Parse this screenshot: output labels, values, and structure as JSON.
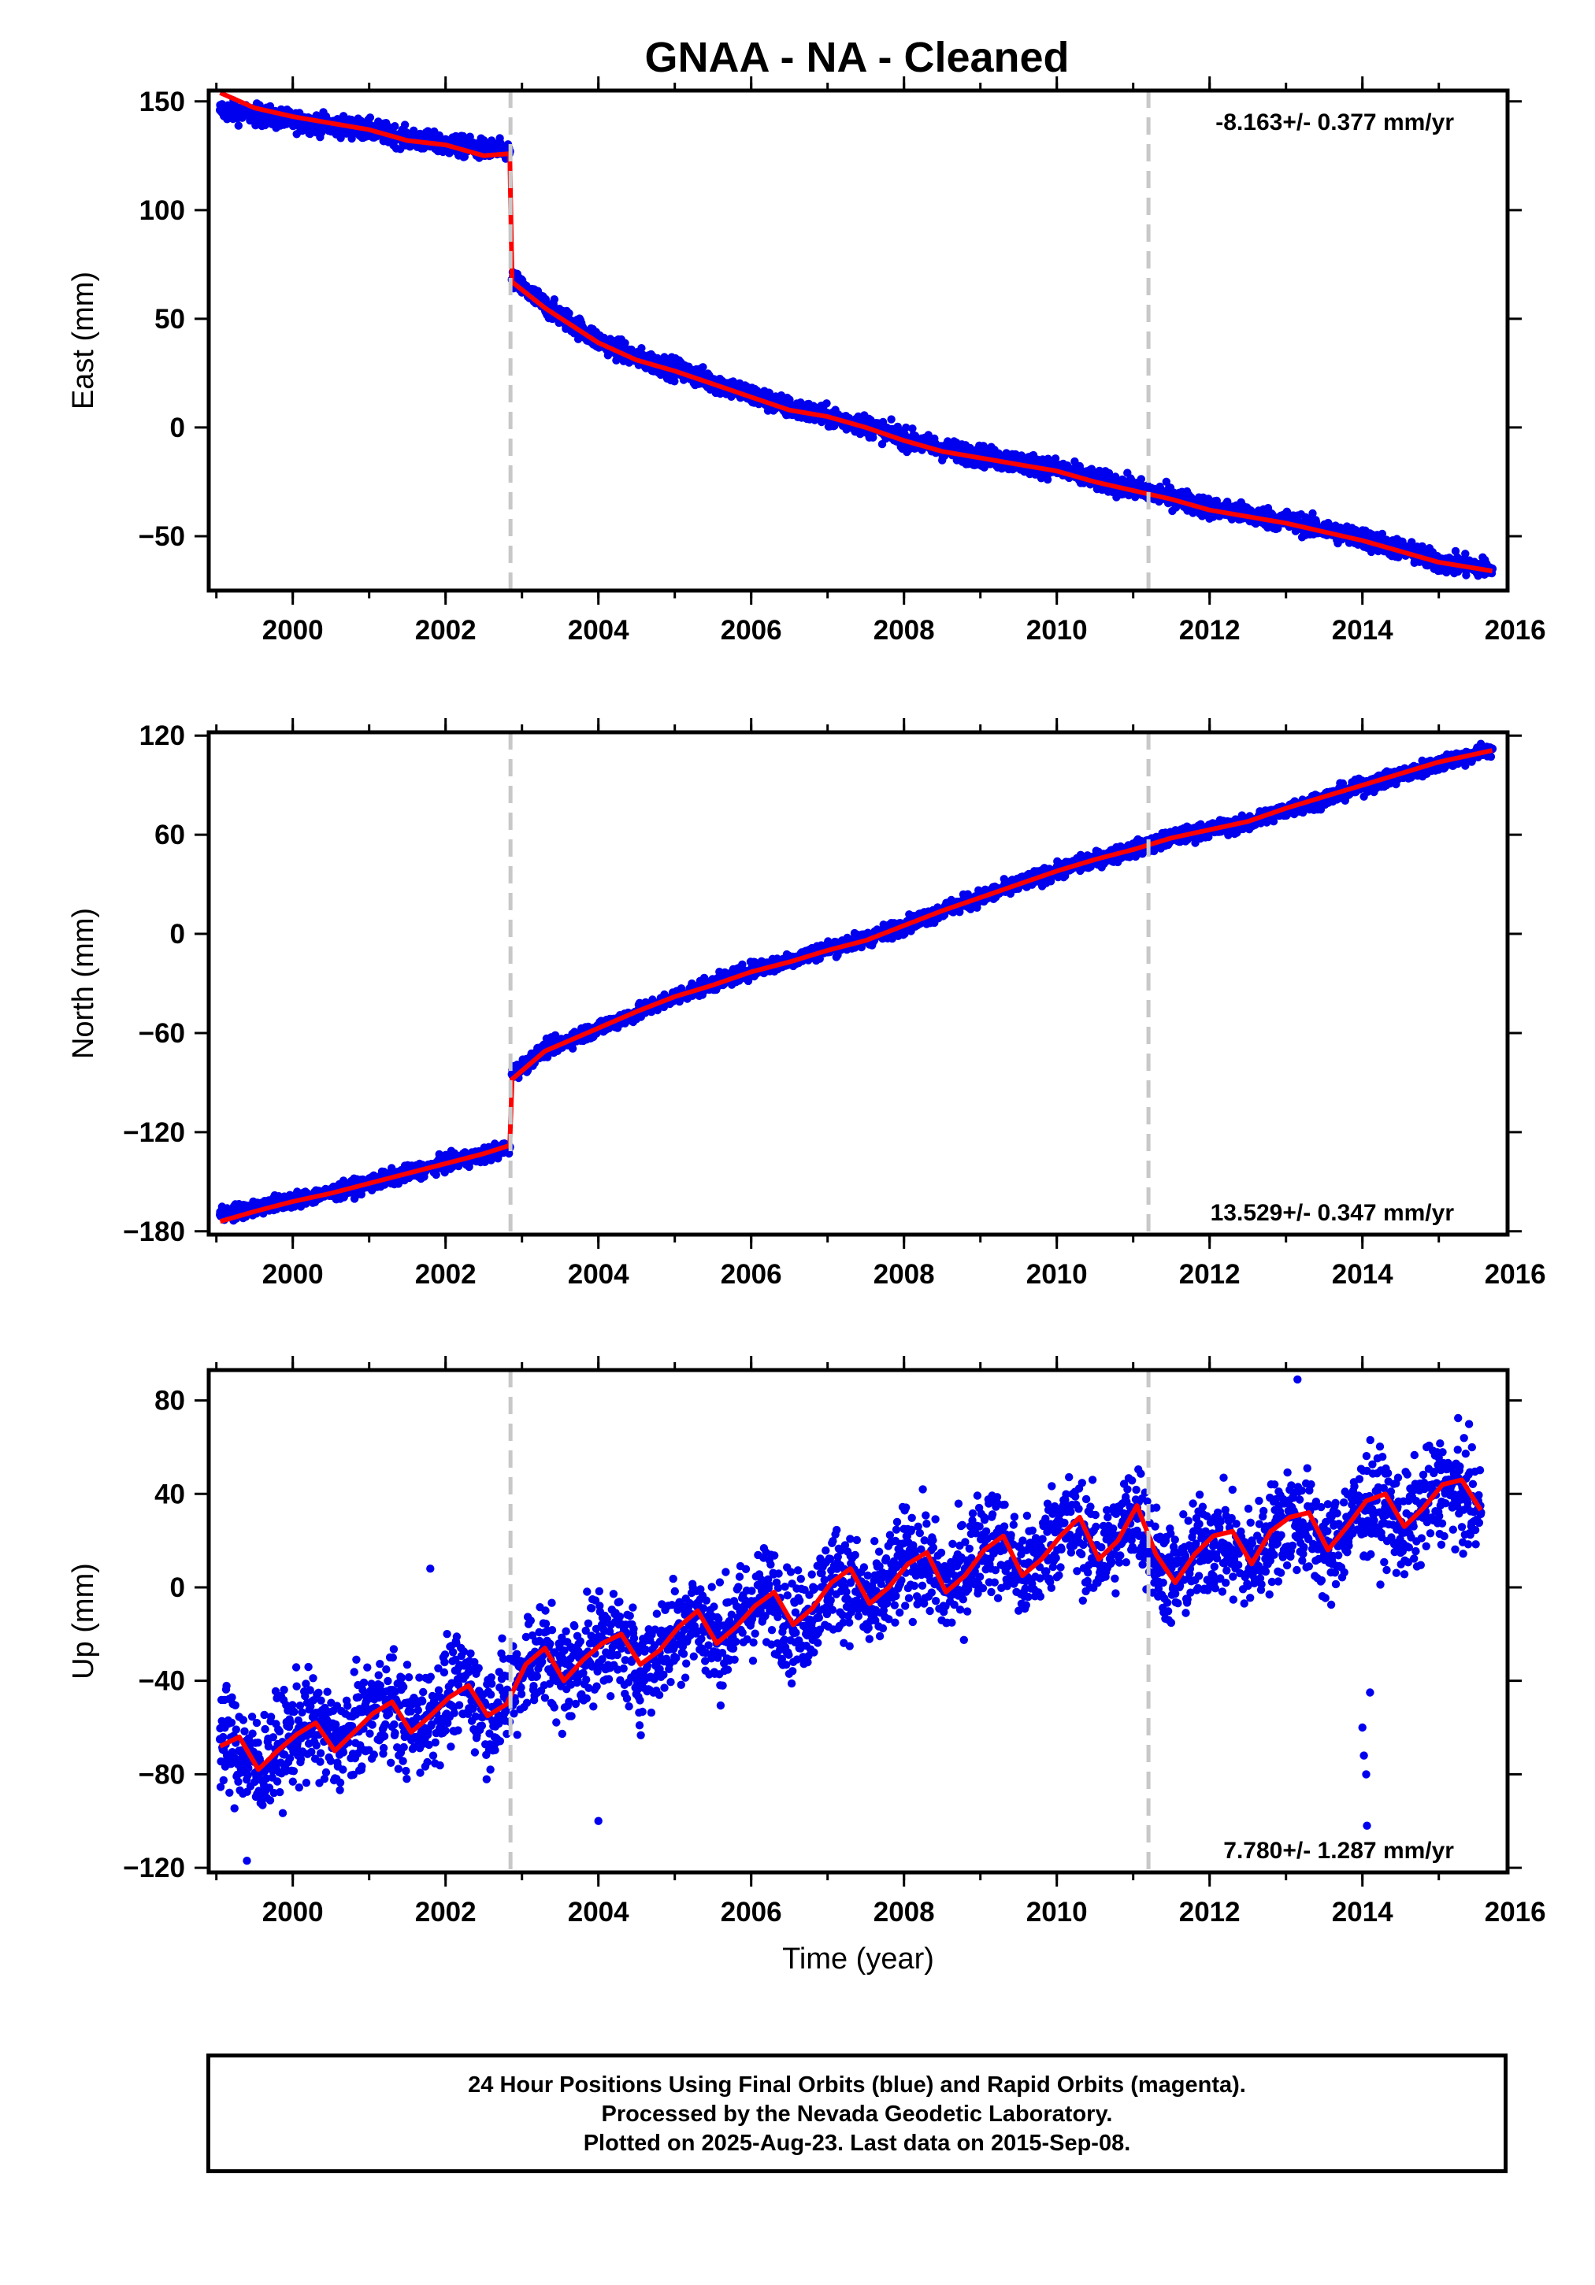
{
  "title": "GNAA  - NA - Cleaned",
  "chart_data": [
    {
      "type": "scatter",
      "panel": "east",
      "ylabel": "East (mm)",
      "xlabel": "",
      "xlim": [
        1998.9,
        2015.9
      ],
      "ylim": [
        -75,
        155
      ],
      "x_ticks": [
        2000,
        2002,
        2004,
        2006,
        2008,
        2010,
        2012,
        2014,
        2016
      ],
      "y_ticks": [
        -50,
        0,
        50,
        100,
        150
      ],
      "y_tick_labels": [
        "−50",
        "0",
        "50",
        "100",
        "150"
      ],
      "rate_text": "-8.163+/- 0.377 mm/yr",
      "rate_position": "top-right",
      "offset_lines": [
        2002.85,
        2011.2
      ],
      "series": [
        {
          "role": "daily-positions",
          "color": "#0000ee",
          "x": [
            1999.05,
            1999.5,
            2000.0,
            2000.5,
            2001.0,
            2001.5,
            2002.0,
            2002.5,
            2002.84,
            2002.87,
            2003.3,
            2004.0,
            2004.5,
            2005.0,
            2005.5,
            2006.0,
            2006.5,
            2007.0,
            2007.5,
            2008.0,
            2008.5,
            2009.0,
            2009.5,
            2010.0,
            2010.5,
            2011.0,
            2011.5,
            2012.0,
            2012.5,
            2013.0,
            2013.5,
            2014.0,
            2014.5,
            2015.0,
            2015.7
          ],
          "y": [
            146,
            144,
            141,
            139,
            137,
            133,
            130,
            128,
            127,
            68,
            56,
            40,
            32,
            27,
            21,
            15,
            9,
            5,
            1,
            -5,
            -10,
            -13,
            -16,
            -19,
            -24,
            -28,
            -32,
            -37,
            -40,
            -43,
            -47,
            -51,
            -56,
            -62,
            -65
          ]
        },
        {
          "role": "model-fit",
          "color": "#ff0000",
          "x": [
            1999.05,
            1999.5,
            2000.0,
            2000.5,
            2001.0,
            2001.5,
            2002.0,
            2002.5,
            2002.84,
            2002.87,
            2003.3,
            2004.0,
            2004.5,
            2005.0,
            2005.5,
            2006.0,
            2006.5,
            2007.0,
            2007.5,
            2008.0,
            2008.5,
            2009.0,
            2009.5,
            2010.0,
            2010.5,
            2011.0,
            2011.5,
            2012.0,
            2012.5,
            2013.0,
            2013.5,
            2014.0,
            2014.5,
            2015.0,
            2015.7
          ],
          "y": [
            154,
            147,
            143,
            140,
            137,
            132,
            130,
            125,
            126,
            67,
            55,
            39,
            31,
            26,
            20,
            14,
            8,
            5,
            0,
            -6,
            -11,
            -14,
            -17,
            -20,
            -25,
            -29,
            -33,
            -38,
            -41,
            -44,
            -48,
            -52,
            -57,
            -62,
            -66
          ]
        }
      ]
    },
    {
      "type": "scatter",
      "panel": "north",
      "ylabel": "North (mm)",
      "xlabel": "",
      "xlim": [
        1998.9,
        2015.9
      ],
      "ylim": [
        -182,
        122
      ],
      "x_ticks": [
        2000,
        2002,
        2004,
        2006,
        2008,
        2010,
        2012,
        2014,
        2016
      ],
      "y_ticks": [
        -180,
        -120,
        -60,
        0,
        60,
        120
      ],
      "y_tick_labels": [
        "−180",
        "−120",
        "−60",
        "0",
        "60",
        "120"
      ],
      "rate_text": "13.529+/- 0.347 mm/yr",
      "rate_position": "bottom-right",
      "offset_lines": [
        2002.85,
        2011.2
      ],
      "series": [
        {
          "role": "daily-positions",
          "color": "#0000ee",
          "x": [
            1999.05,
            1999.5,
            2000.0,
            2000.5,
            2001.0,
            2001.5,
            2002.0,
            2002.5,
            2002.84,
            2002.87,
            2003.3,
            2004.0,
            2004.5,
            2005.0,
            2005.5,
            2006.0,
            2006.5,
            2007.0,
            2007.5,
            2008.0,
            2008.5,
            2009.0,
            2009.5,
            2010.0,
            2010.5,
            2011.0,
            2011.5,
            2012.0,
            2012.5,
            2013.0,
            2013.5,
            2014.0,
            2014.5,
            2015.0,
            2015.7
          ],
          "y": [
            -170,
            -166,
            -161,
            -157,
            -151,
            -145,
            -139,
            -134,
            -129,
            -85,
            -70,
            -57,
            -48,
            -38,
            -30,
            -22,
            -16,
            -9,
            -3,
            5,
            14,
            22,
            30,
            38,
            45,
            51,
            58,
            63,
            67,
            75,
            82,
            89,
            96,
            103,
            112
          ]
        },
        {
          "role": "model-fit",
          "color": "#ff0000",
          "x": [
            1999.05,
            1999.5,
            2000.0,
            2000.5,
            2001.0,
            2001.5,
            2002.0,
            2002.5,
            2002.84,
            2002.87,
            2003.3,
            2004.0,
            2004.5,
            2005.0,
            2005.5,
            2006.0,
            2006.5,
            2007.0,
            2007.5,
            2008.0,
            2008.5,
            2009.0,
            2009.5,
            2010.0,
            2010.5,
            2011.0,
            2011.5,
            2012.0,
            2012.5,
            2013.0,
            2013.5,
            2014.0,
            2014.5,
            2015.0,
            2015.7
          ],
          "y": [
            -174,
            -168,
            -162,
            -157,
            -151,
            -145,
            -139,
            -133,
            -128,
            -88,
            -71,
            -57,
            -47,
            -38,
            -31,
            -23,
            -17,
            -10,
            -4,
            5,
            14,
            22,
            30,
            38,
            45,
            51,
            58,
            63,
            68,
            76,
            83,
            90,
            97,
            104,
            111
          ]
        }
      ]
    },
    {
      "type": "scatter",
      "panel": "up",
      "ylabel": "Up (mm)",
      "xlabel": "Time (year)",
      "xlim": [
        1998.9,
        2015.9
      ],
      "ylim": [
        -122,
        93
      ],
      "x_ticks": [
        2000,
        2002,
        2004,
        2006,
        2008,
        2010,
        2012,
        2014,
        2016
      ],
      "y_ticks": [
        -120,
        -80,
        -40,
        0,
        40,
        80
      ],
      "y_tick_labels": [
        "−120",
        "−80",
        "−40",
        "0",
        "40",
        "80"
      ],
      "rate_text": "7.780+/- 1.287 mm/yr",
      "rate_position": "bottom-right",
      "offset_lines": [
        2002.85,
        2011.2
      ],
      "series": [
        {
          "role": "daily-positions",
          "color": "#0000ee",
          "x": [
            1999.05,
            1999.3,
            1999.55,
            1999.8,
            2000.05,
            2000.3,
            2000.55,
            2000.8,
            2001.05,
            2001.3,
            2001.55,
            2001.8,
            2002.05,
            2002.3,
            2002.55,
            2002.8,
            2003.05,
            2003.3,
            2003.55,
            2003.8,
            2004.05,
            2004.3,
            2004.55,
            2004.8,
            2005.05,
            2005.3,
            2005.55,
            2005.8,
            2006.05,
            2006.3,
            2006.55,
            2006.8,
            2007.05,
            2007.3,
            2007.55,
            2007.8,
            2008.05,
            2008.3,
            2008.55,
            2008.8,
            2009.05,
            2009.3,
            2009.55,
            2009.8,
            2010.05,
            2010.3,
            2010.55,
            2010.8,
            2011.05,
            2011.3,
            2011.55,
            2011.8,
            2012.05,
            2012.3,
            2012.55,
            2012.8,
            2013.05,
            2013.3,
            2013.55,
            2013.8,
            2014.05,
            2014.3,
            2014.55,
            2014.8,
            2015.05,
            2015.3,
            2015.55
          ],
          "y": [
            -65,
            -70,
            -78,
            -70,
            -62,
            -58,
            -68,
            -62,
            -52,
            -50,
            -60,
            -55,
            -45,
            -42,
            -55,
            -48,
            -32,
            -28,
            -38,
            -30,
            -22,
            -24,
            -36,
            -28,
            -16,
            -12,
            -24,
            -16,
            -6,
            -4,
            -18,
            -10,
            4,
            2,
            -10,
            0,
            14,
            10,
            -2,
            8,
            22,
            18,
            4,
            14,
            28,
            24,
            12,
            22,
            34,
            12,
            2,
            14,
            20,
            16,
            10,
            22,
            30,
            26,
            14,
            26,
            36,
            34,
            24,
            34,
            44,
            40,
            32
          ]
        },
        {
          "role": "model-fit",
          "color": "#ff0000",
          "x": [
            1999.05,
            1999.3,
            1999.55,
            1999.8,
            2000.05,
            2000.3,
            2000.55,
            2000.8,
            2001.05,
            2001.3,
            2001.55,
            2001.8,
            2002.05,
            2002.3,
            2002.55,
            2002.8,
            2003.05,
            2003.3,
            2003.55,
            2003.8,
            2004.05,
            2004.3,
            2004.55,
            2004.8,
            2005.05,
            2005.3,
            2005.55,
            2005.8,
            2006.05,
            2006.3,
            2006.55,
            2006.8,
            2007.05,
            2007.3,
            2007.55,
            2007.8,
            2008.05,
            2008.3,
            2008.55,
            2008.8,
            2009.05,
            2009.3,
            2009.55,
            2009.8,
            2010.05,
            2010.3,
            2010.55,
            2010.8,
            2011.05,
            2011.3,
            2011.55,
            2011.8,
            2012.05,
            2012.3,
            2012.55,
            2012.8,
            2013.05,
            2013.3,
            2013.55,
            2013.8,
            2014.05,
            2014.3,
            2014.55,
            2014.8,
            2015.05,
            2015.3,
            2015.55
          ],
          "y": [
            -68,
            -64,
            -78,
            -70,
            -63,
            -58,
            -70,
            -62,
            -54,
            -49,
            -62,
            -55,
            -47,
            -42,
            -55,
            -50,
            -33,
            -26,
            -40,
            -31,
            -24,
            -20,
            -33,
            -27,
            -17,
            -10,
            -24,
            -17,
            -8,
            -2,
            -16,
            -9,
            2,
            8,
            -7,
            0,
            10,
            15,
            -2,
            5,
            16,
            22,
            5,
            12,
            22,
            30,
            12,
            20,
            35,
            14,
            2,
            14,
            22,
            24,
            10,
            24,
            30,
            32,
            16,
            26,
            37,
            40,
            26,
            34,
            44,
            46,
            33
          ]
        }
      ]
    }
  ],
  "footer": {
    "line1": "24 Hour Positions Using Final Orbits (blue) and Rapid Orbits (magenta).",
    "line2": "Processed by the Nevada Geodetic Laboratory.",
    "line3": "Plotted on 2025-Aug-23. Last data on 2015-Sep-08."
  }
}
